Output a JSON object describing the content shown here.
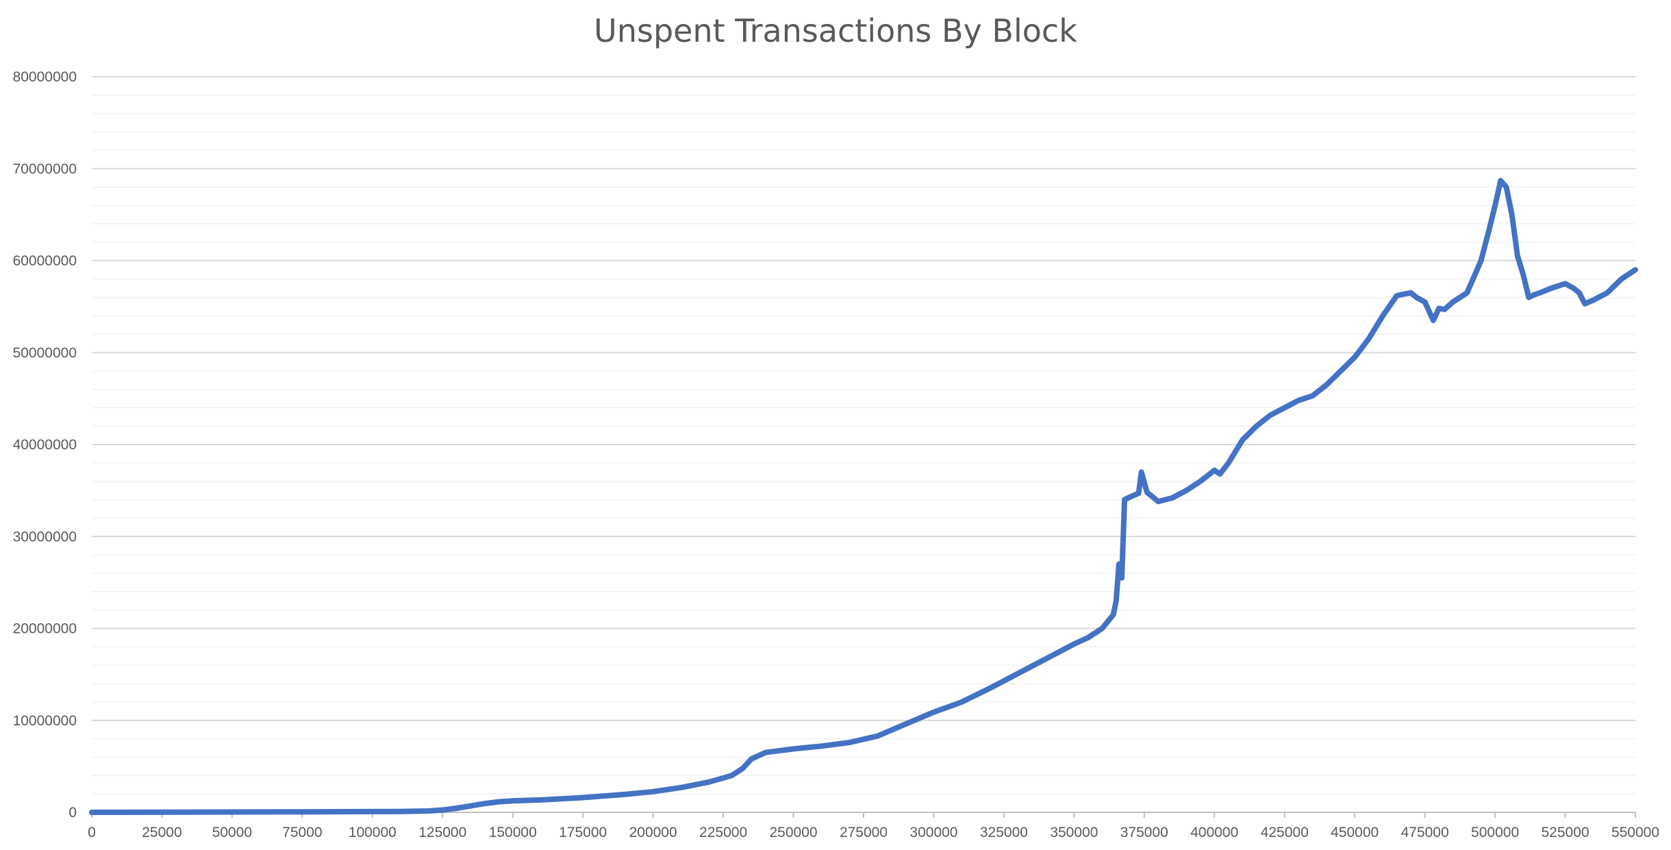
{
  "chart_data": {
    "type": "line",
    "title": "Unspent Transactions By Block",
    "xlabel": "",
    "ylabel": "",
    "xlim": [
      0,
      550000
    ],
    "ylim": [
      0,
      80000000
    ],
    "x_ticks": [
      "0",
      "25000",
      "50000",
      "75000",
      "100000",
      "125000",
      "150000",
      "175000",
      "200000",
      "225000",
      "250000",
      "275000",
      "300000",
      "325000",
      "350000",
      "375000",
      "400000",
      "425000",
      "450000",
      "475000",
      "500000",
      "525000",
      "550000"
    ],
    "y_ticks": [
      "0",
      "10000000",
      "20000000",
      "30000000",
      "40000000",
      "50000000",
      "60000000",
      "70000000",
      "80000000"
    ],
    "grid": "horizontal major and minor",
    "legend": "none",
    "line_color": "#4472C4",
    "series": [
      {
        "x": [
          0,
          40000,
          80000,
          110000,
          120000,
          125000,
          130000,
          135000,
          140000,
          145000,
          150000,
          160000,
          175000,
          190000,
          200000,
          210000,
          220000,
          228000,
          232000,
          235000,
          240000,
          250000,
          260000,
          270000,
          280000,
          290000,
          300000,
          310000,
          320000,
          330000,
          340000,
          350000,
          355000,
          360000,
          364000,
          365000,
          366000,
          367000,
          368000,
          370000,
          373000,
          374000,
          376000,
          380000,
          385000,
          390000,
          395000,
          400000,
          402000,
          405000,
          410000,
          415000,
          420000,
          425000,
          430000,
          435000,
          440000,
          445000,
          450000,
          455000,
          460000,
          465000,
          470000,
          472000,
          475000,
          478000,
          480000,
          482000,
          485000,
          490000,
          495000,
          498000,
          500000,
          502000,
          504000,
          506000,
          508000,
          510000,
          512000,
          514000,
          516000,
          520000,
          525000,
          528000,
          530000,
          532000,
          535000,
          540000,
          545000,
          550000
        ],
        "y": [
          0,
          30000,
          60000,
          100000,
          150000,
          250000,
          450000,
          700000,
          950000,
          1150000,
          1250000,
          1350000,
          1600000,
          1950000,
          2250000,
          2700000,
          3300000,
          4000000,
          4800000,
          5800000,
          6500000,
          6900000,
          7200000,
          7600000,
          8300000,
          9600000,
          10900000,
          12000000,
          13500000,
          15100000,
          16700000,
          18300000,
          19000000,
          20000000,
          21500000,
          23000000,
          27000000,
          25500000,
          34000000,
          34300000,
          34700000,
          37000000,
          34800000,
          33800000,
          34200000,
          35000000,
          36000000,
          37200000,
          36800000,
          38000000,
          40500000,
          42000000,
          43200000,
          44000000,
          44800000,
          45300000,
          46500000,
          48000000,
          49500000,
          51500000,
          54000000,
          56200000,
          56500000,
          56000000,
          55500000,
          53500000,
          54800000,
          54700000,
          55500000,
          56500000,
          60000000,
          63500000,
          66000000,
          68700000,
          68000000,
          65000000,
          60500000,
          58500000,
          56000000,
          56300000,
          56500000,
          57000000,
          57500000,
          57000000,
          56500000,
          55300000,
          55700000,
          56500000,
          58000000,
          59000000
        ]
      }
    ]
  }
}
